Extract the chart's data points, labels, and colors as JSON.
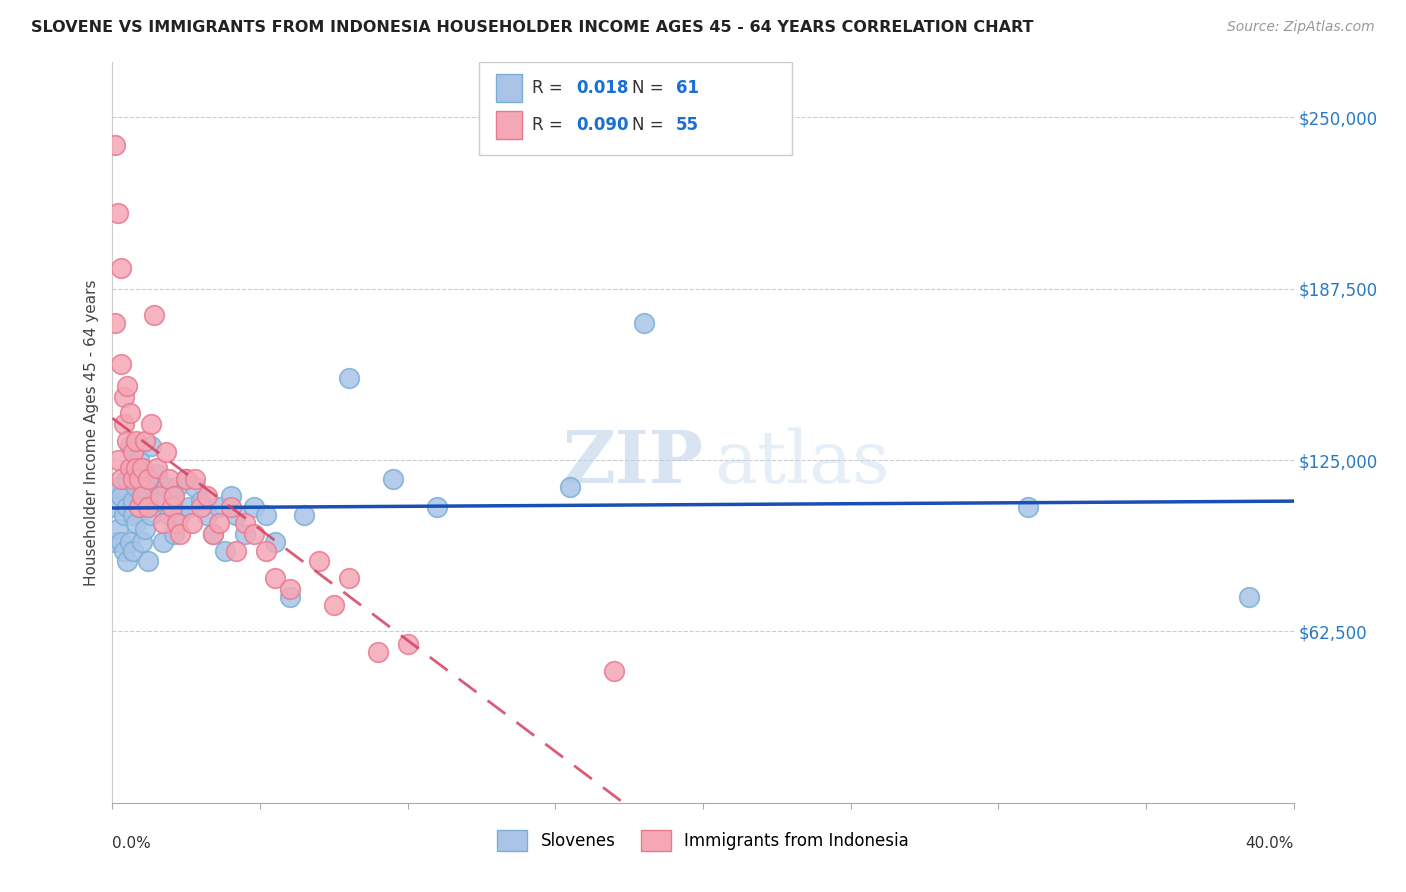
{
  "title": "SLOVENE VS IMMIGRANTS FROM INDONESIA HOUSEHOLDER INCOME AGES 45 - 64 YEARS CORRELATION CHART",
  "source": "Source: ZipAtlas.com",
  "ylabel": "Householder Income Ages 45 - 64 years",
  "ytick_labels": [
    "$62,500",
    "$125,000",
    "$187,500",
    "$250,000"
  ],
  "ytick_values": [
    62500,
    125000,
    187500,
    250000
  ],
  "ymin": 0,
  "ymax": 270000,
  "xmin": 0.0,
  "xmax": 0.4,
  "legend_blue_R": "0.018",
  "legend_blue_N": "61",
  "legend_pink_R": "0.090",
  "legend_pink_N": "55",
  "legend_blue_label": "Slovenes",
  "legend_pink_label": "Immigrants from Indonesia",
  "blue_color": "#aac4e8",
  "pink_color": "#f4a7b5",
  "blue_edge_color": "#7aafd4",
  "pink_edge_color": "#e87a90",
  "trend_blue_color": "#1a4fb5",
  "trend_pink_color": "#d44060",
  "watermark_zip": "ZIP",
  "watermark_atlas": "atlas",
  "blue_scatter_x": [
    0.001,
    0.001,
    0.002,
    0.002,
    0.003,
    0.003,
    0.004,
    0.004,
    0.005,
    0.005,
    0.005,
    0.006,
    0.006,
    0.007,
    0.007,
    0.007,
    0.008,
    0.008,
    0.009,
    0.009,
    0.01,
    0.01,
    0.011,
    0.011,
    0.012,
    0.012,
    0.013,
    0.013,
    0.014,
    0.015,
    0.016,
    0.017,
    0.018,
    0.019,
    0.02,
    0.021,
    0.022,
    0.023,
    0.025,
    0.026,
    0.028,
    0.03,
    0.032,
    0.034,
    0.036,
    0.038,
    0.04,
    0.042,
    0.045,
    0.048,
    0.052,
    0.055,
    0.06,
    0.065,
    0.08,
    0.095,
    0.11,
    0.155,
    0.18,
    0.31,
    0.385
  ],
  "blue_scatter_y": [
    108000,
    95000,
    115000,
    100000,
    112000,
    95000,
    105000,
    92000,
    118000,
    108000,
    88000,
    130000,
    95000,
    110000,
    105000,
    92000,
    115000,
    102000,
    125000,
    108000,
    112000,
    95000,
    115000,
    100000,
    108000,
    88000,
    130000,
    105000,
    115000,
    120000,
    110000,
    95000,
    115000,
    105000,
    112000,
    98000,
    115000,
    105000,
    118000,
    108000,
    115000,
    110000,
    105000,
    98000,
    108000,
    92000,
    112000,
    105000,
    98000,
    108000,
    105000,
    95000,
    75000,
    105000,
    155000,
    118000,
    108000,
    115000,
    175000,
    108000,
    75000
  ],
  "pink_scatter_x": [
    0.001,
    0.001,
    0.002,
    0.002,
    0.003,
    0.003,
    0.003,
    0.004,
    0.004,
    0.005,
    0.005,
    0.006,
    0.006,
    0.007,
    0.007,
    0.008,
    0.008,
    0.009,
    0.009,
    0.01,
    0.01,
    0.011,
    0.012,
    0.012,
    0.013,
    0.014,
    0.015,
    0.016,
    0.017,
    0.018,
    0.019,
    0.02,
    0.021,
    0.022,
    0.023,
    0.025,
    0.027,
    0.028,
    0.03,
    0.032,
    0.034,
    0.036,
    0.04,
    0.042,
    0.045,
    0.048,
    0.052,
    0.055,
    0.06,
    0.07,
    0.075,
    0.08,
    0.09,
    0.1,
    0.17
  ],
  "pink_scatter_y": [
    240000,
    175000,
    215000,
    125000,
    195000,
    160000,
    118000,
    148000,
    138000,
    152000,
    132000,
    142000,
    122000,
    128000,
    118000,
    132000,
    122000,
    118000,
    108000,
    122000,
    112000,
    132000,
    118000,
    108000,
    138000,
    178000,
    122000,
    112000,
    102000,
    128000,
    118000,
    108000,
    112000,
    102000,
    98000,
    118000,
    102000,
    118000,
    108000,
    112000,
    98000,
    102000,
    108000,
    92000,
    102000,
    98000,
    92000,
    82000,
    78000,
    88000,
    72000,
    82000,
    55000,
    58000,
    48000
  ]
}
